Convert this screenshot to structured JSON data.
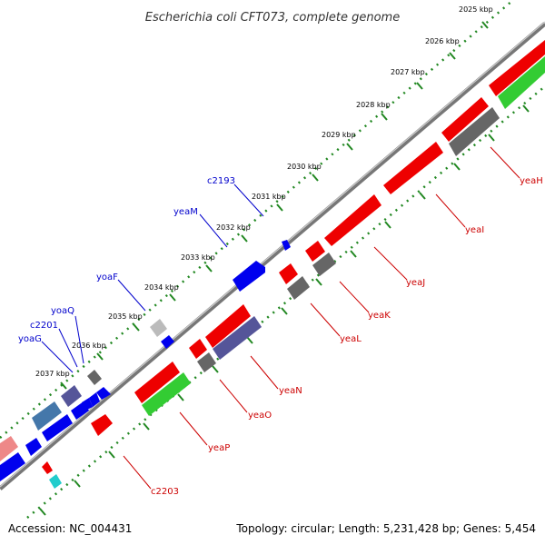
{
  "header": {
    "title": "Escherichia coli CFT073, complete genome"
  },
  "footer": {
    "accession": "Accession: NC_004431",
    "summary": "Topology: circular; Length: 5,231,428 bp; Genes: 5,454"
  },
  "kbp_ticks": [
    "2025 kbp",
    "2026 kbp",
    "2027 kbp",
    "2028 kbp",
    "2029 kbp",
    "2030 kbp",
    "2031 kbp",
    "2032 kbp",
    "2033 kbp",
    "2034 kbp",
    "2035 kbp",
    "2036 kbp",
    "2037 kbp"
  ],
  "labels_top": [
    "c2193",
    "yeaM",
    "yoaF",
    "yoaQ",
    "c2201",
    "yoaG"
  ],
  "labels_bottom": [
    "yeaH",
    "yeaI",
    "yeaJ",
    "yeaK",
    "yeaL",
    "yeaN",
    "yeaO",
    "yeaP",
    "c2203"
  ],
  "colors": {
    "forward_gene": "#0000ee",
    "reverse_gene": "#ee0000",
    "green_gene": "#33cc33",
    "grey_gene": "#666666",
    "purple_gene": "#555599",
    "ruler_dots": "#228822",
    "backbone": "#888888"
  }
}
